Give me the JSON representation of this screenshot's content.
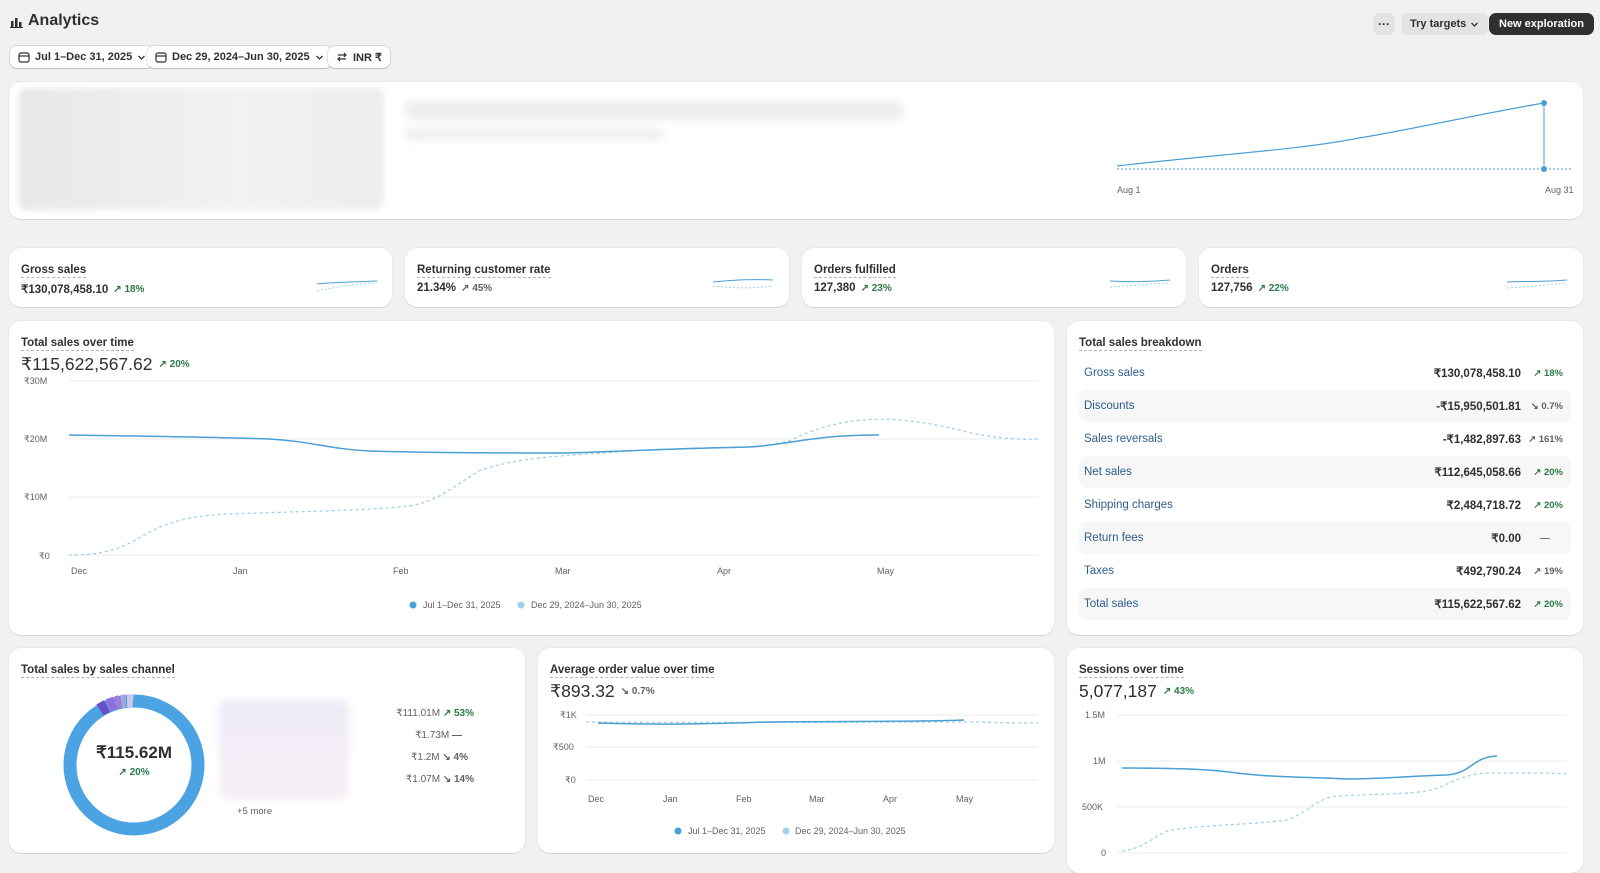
{
  "header": {
    "title": "Analytics",
    "more_label": "···",
    "try_targets": "Try targets",
    "new_exploration": "New exploration"
  },
  "filters": {
    "date_range": "Jul 1–Dec 31, 2025",
    "compare_range": "Dec 29, 2024–Jun 30, 2025",
    "currency": "INR ₹"
  },
  "hero": {
    "x_start": "Aug 1",
    "x_end": "Aug 31"
  },
  "metrics": [
    {
      "label": "Gross sales",
      "value": "₹130,078,458.10",
      "change": "18%"
    },
    {
      "label": "Returning customer rate",
      "value": "21.34%",
      "change": "45%"
    },
    {
      "label": "Orders fulfilled",
      "value": "127,380",
      "change": "23%"
    },
    {
      "label": "Orders",
      "value": "127,756",
      "change": "22%"
    }
  ],
  "total_sales": {
    "title": "Total sales over time",
    "value": "₹115,622,567.62",
    "change": "20%",
    "y_ticks": [
      "₹30M",
      "₹20M",
      "₹10M",
      "₹0"
    ],
    "x_ticks": [
      "Dec",
      "Jan",
      "Feb",
      "Mar",
      "Apr",
      "May"
    ],
    "legend_current": "Jul 1–Dec 31, 2025",
    "legend_previous": "Dec 29, 2024–Jun 30, 2025"
  },
  "breakdown": {
    "title": "Total sales breakdown",
    "rows": [
      {
        "label": "Gross sales",
        "amount": "₹130,078,458.10",
        "change": "18%",
        "dir": "up"
      },
      {
        "label": "Discounts",
        "amount": "-₹15,950,501.81",
        "change": "0.7%",
        "dir": "down"
      },
      {
        "label": "Sales reversals",
        "amount": "-₹1,482,897.63",
        "change": "161%",
        "dir": "up-neutral"
      },
      {
        "label": "Net sales",
        "amount": "₹112,645,058.66",
        "change": "20%",
        "dir": "up"
      },
      {
        "label": "Shipping charges",
        "amount": "₹2,484,718.72",
        "change": "20%",
        "dir": "up"
      },
      {
        "label": "Return fees",
        "amount": "₹0.00",
        "change": "—",
        "dir": "none"
      },
      {
        "label": "Taxes",
        "amount": "₹492,790.24",
        "change": "19%",
        "dir": "up-neutral"
      },
      {
        "label": "Total sales",
        "amount": "₹115,622,567.62",
        "change": "20%",
        "dir": "up"
      }
    ]
  },
  "by_channel": {
    "title": "Total sales by sales channel",
    "center_value": "₹115.62M",
    "center_change": "20%",
    "values": [
      {
        "amount": "₹111.01M",
        "change": "53%",
        "dir": "up"
      },
      {
        "amount": "₹1.73M",
        "change": "—",
        "dir": "none"
      },
      {
        "amount": "₹1.2M",
        "change": "4%",
        "dir": "down"
      },
      {
        "amount": "₹1.07M",
        "change": "14%",
        "dir": "down"
      }
    ],
    "more": "+5 more",
    "share_primary": 0.96
  },
  "aov": {
    "title": "Average order value over time",
    "value": "₹893.32",
    "change": "0.7%",
    "y_ticks": [
      "₹1K",
      "₹500",
      "₹0"
    ],
    "x_ticks": [
      "Dec",
      "Jan",
      "Feb",
      "Mar",
      "Apr",
      "May"
    ],
    "legend_current": "Jul 1–Dec 31, 2025",
    "legend_previous": "Dec 29, 2024–Jun 30, 2025"
  },
  "sessions": {
    "title": "Sessions over time",
    "value": "5,077,187",
    "change": "43%",
    "y_ticks": [
      "1.5M",
      "1M",
      "500K",
      "0"
    ]
  },
  "colors": {
    "primary": "#4a9fd4",
    "secondary": "#9fd0ee",
    "positive": "#2b7a46",
    "link": "#2c5d8f"
  }
}
